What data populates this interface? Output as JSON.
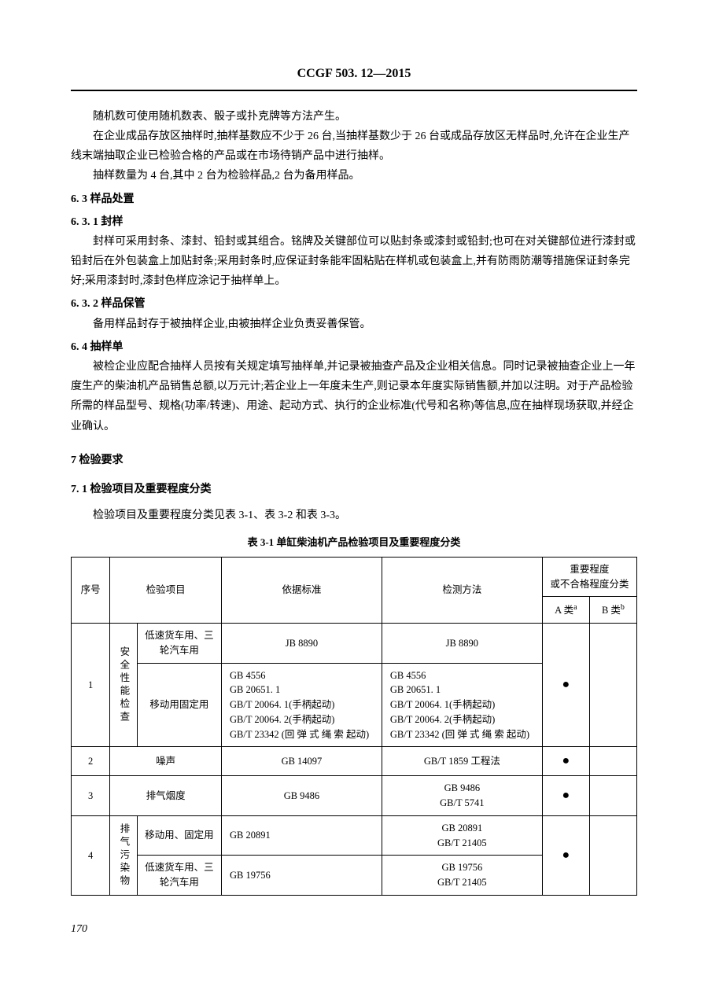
{
  "header": {
    "doc_id": "CCGF 503. 12—2015"
  },
  "body": {
    "p1": "随机数可使用随机数表、骰子或扑克牌等方法产生。",
    "p2": "在企业成品存放区抽样时,抽样基数应不少于 26 台,当抽样基数少于 26 台或成品存放区无样品时,允许在企业生产线末端抽取企业已检验合格的产品或在市场待销产品中进行抽样。",
    "p3": "抽样数量为 4 台,其中 2 台为检验样品,2 台为备用样品。",
    "s6_3": "6. 3  样品处置",
    "s6_3_1": "6. 3. 1  封样",
    "p4": "封样可采用封条、漆封、铅封或其组合。铭牌及关键部位可以贴封条或漆封或铅封;也可在对关键部位进行漆封或铅封后在外包装盒上加贴封条;采用封条时,应保证封条能牢固粘贴在样机或包装盒上,并有防雨防潮等措施保证封条完好;采用漆封时,漆封色样应涂记于抽样单上。",
    "s6_3_2": "6. 3. 2  样品保管",
    "p5": "备用样品封存于被抽样企业,由被抽样企业负责妥善保管。",
    "s6_4": "6. 4  抽样单",
    "p6": "被检企业应配合抽样人员按有关规定填写抽样单,并记录被抽查产品及企业相关信息。同时记录被抽查企业上一年度生产的柴油机产品销售总额,以万元计;若企业上一年度未生产,则记录本年度实际销售额,并加以注明。对于产品检验所需的样品型号、规格(功率/转速)、用途、起动方式、执行的企业标准(代号和名称)等信息,应在抽样现场获取,并经企业确认。",
    "s7": "7  检验要求",
    "s7_1": "7. 1  检验项目及重要程度分类",
    "p7": "检验项目及重要程度分类见表 3-1、表 3-2 和表 3-3。",
    "table_caption": "表 3-1  单缸柴油机产品检验项目及重要程度分类"
  },
  "table": {
    "headers": {
      "seq": "序号",
      "item": "检验项目",
      "standard": "依据标准",
      "method": "检测方法",
      "importance": "重要程度\n或不合格程度分类",
      "class_a": "A 类",
      "class_a_sup": "a",
      "class_b": "B 类",
      "class_b_sup": "b"
    },
    "rows": [
      {
        "seq": "1",
        "item_group": "安全性能检查",
        "subrows": [
          {
            "item": "低速货车用、三轮汽车用",
            "standard": "JB 8890",
            "method": "JB 8890"
          },
          {
            "item": "移动用固定用",
            "standard": "GB 4556\nGB 20651. 1\nGB/T 20064. 1(手柄起动)\nGB/T 20064. 2(手柄起动)\nGB/T 23342 (回 弹 式 绳 索 起动)",
            "method": "GB 4556\nGB 20651. 1\nGB/T 20064. 1(手柄起动)\nGB/T 20064. 2(手柄起动)\nGB/T 23342 (回 弹 式 绳 索 起动)"
          }
        ],
        "class_a": "●",
        "class_b": ""
      },
      {
        "seq": "2",
        "item": "噪声",
        "standard": "GB 14097",
        "method": "GB/T 1859 工程法",
        "class_a": "●",
        "class_b": ""
      },
      {
        "seq": "3",
        "item": "排气烟度",
        "standard": "GB 9486",
        "method": "GB 9486\nGB/T 5741",
        "class_a": "●",
        "class_b": ""
      },
      {
        "seq": "4",
        "item_group": "排气污染物",
        "subrows": [
          {
            "item": "移动用、固定用",
            "standard": "GB 20891",
            "method": "GB 20891\nGB/T 21405"
          },
          {
            "item": "低速货车用、三轮汽车用",
            "standard": "GB 19756",
            "method": "GB 19756\nGB/T 21405"
          }
        ],
        "class_a": "●",
        "class_b": ""
      }
    ]
  },
  "footer": {
    "page_num": "170"
  }
}
